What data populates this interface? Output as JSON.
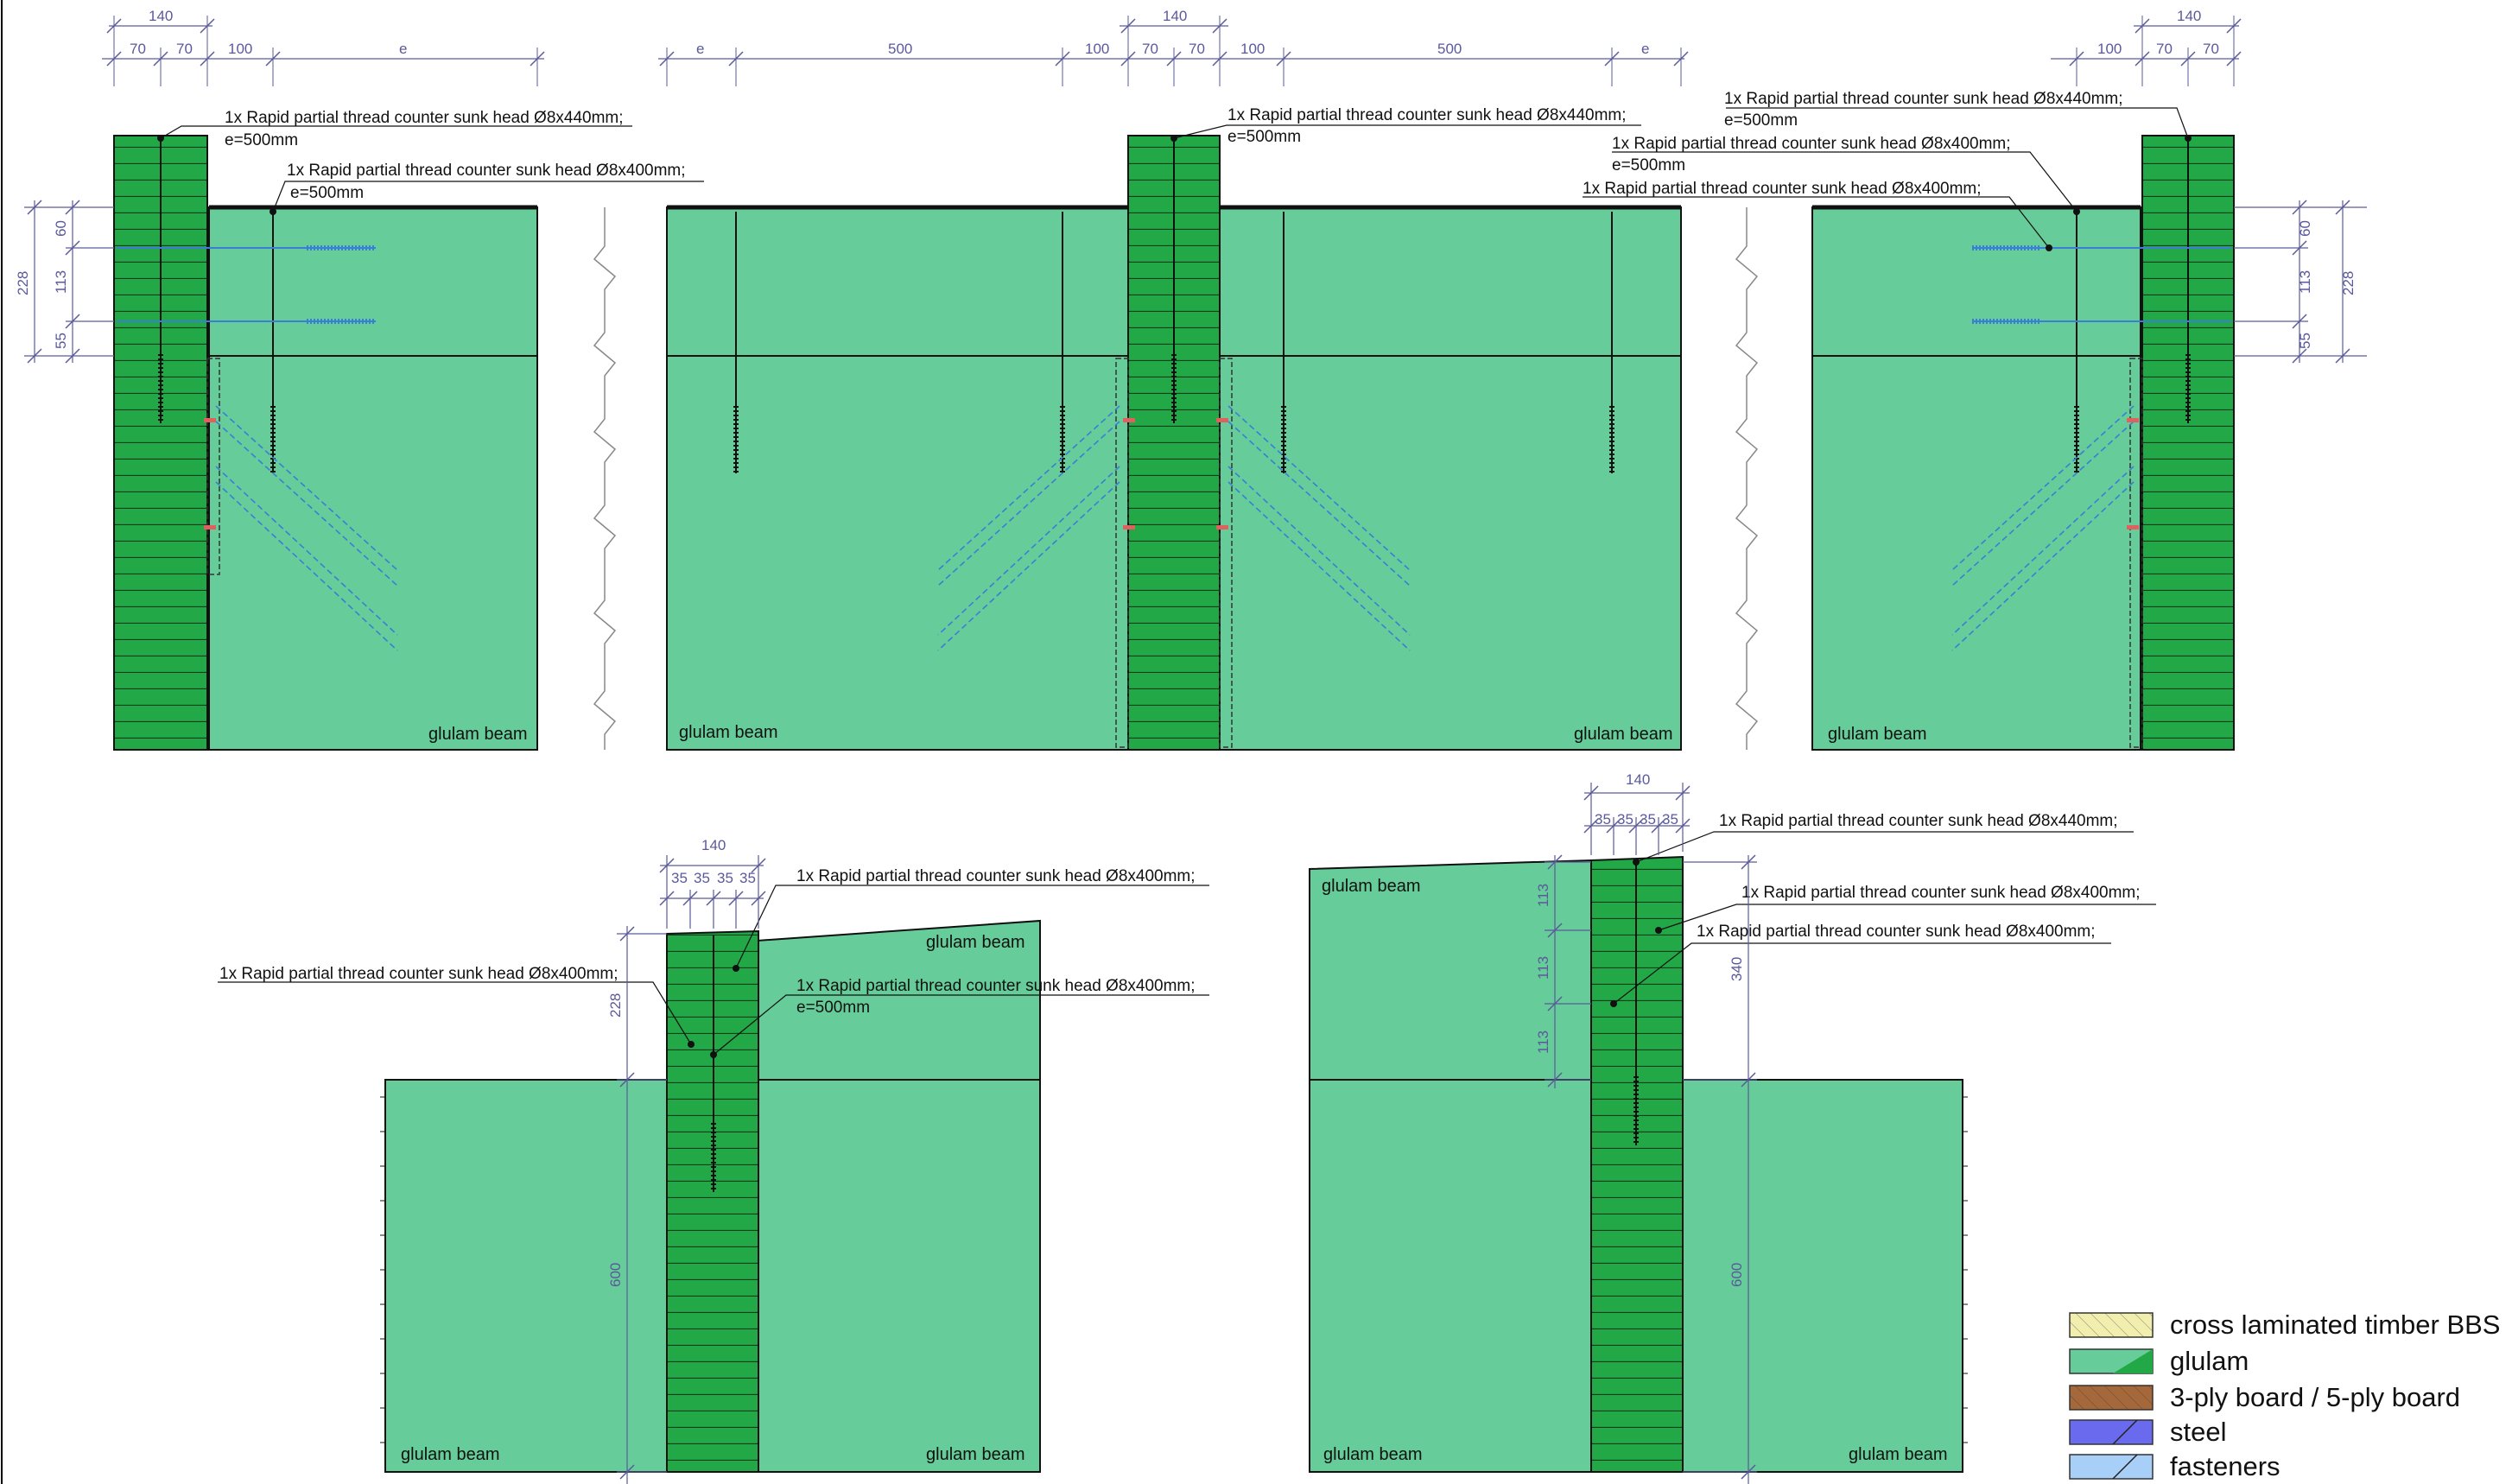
{
  "colors": {
    "glulam_light": "#66cc99",
    "glulam_dark": "#23a847",
    "clt": "#f2eeae",
    "ply": "#a5683a",
    "steel": "#6a6aee",
    "fasteners": "#a8cff7",
    "dimension": "#5a5a9a",
    "screw_blue": "#3a7fd5"
  },
  "legend": [
    {
      "key": "clt",
      "label": "cross laminated timber BBS"
    },
    {
      "key": "glulam",
      "label": "glulam"
    },
    {
      "key": "ply",
      "label": "3-ply board / 5-ply board"
    },
    {
      "key": "steel",
      "label": "steel"
    },
    {
      "key": "fasteners",
      "label": "fasteners"
    }
  ],
  "labels": {
    "glulam_beam": "glulam beam",
    "screw_440": "1x Rapid partial thread counter sunk head Ø8x440mm;",
    "screw_400": "1x Rapid partial thread counter sunk head Ø8x400mm;",
    "spacing": "e=500mm"
  },
  "dims": {
    "d140": "140",
    "d70": "70",
    "d100": "100",
    "d500": "500",
    "de": "e",
    "d35": "35",
    "d228": "228",
    "d113": "113",
    "d60": "60",
    "d55": "55",
    "d600": "600",
    "d340": "340"
  }
}
